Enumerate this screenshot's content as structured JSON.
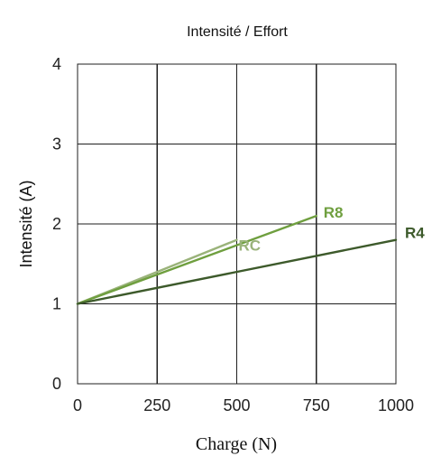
{
  "chart_data": {
    "type": "line",
    "title": "Intensité / Effort",
    "xlabel": "Charge (N)",
    "ylabel": "Intensité (A)",
    "xlim": [
      0,
      1000
    ],
    "ylim": [
      0,
      4
    ],
    "x_ticks": [
      "0",
      "250",
      "500",
      "750",
      "1000"
    ],
    "y_ticks": [
      "0",
      "1",
      "2",
      "3",
      "4"
    ],
    "grid": true,
    "series": [
      {
        "name": "RC",
        "color": "#9ab37a",
        "x": [
          0,
          500
        ],
        "y": [
          1.0,
          1.8
        ]
      },
      {
        "name": "R8",
        "color": "#6f9f3f",
        "x": [
          0,
          750
        ],
        "y": [
          1.0,
          2.1
        ]
      },
      {
        "name": "R4",
        "color": "#3d5a2b",
        "x": [
          0,
          1000
        ],
        "y": [
          1.0,
          1.8
        ]
      }
    ]
  }
}
